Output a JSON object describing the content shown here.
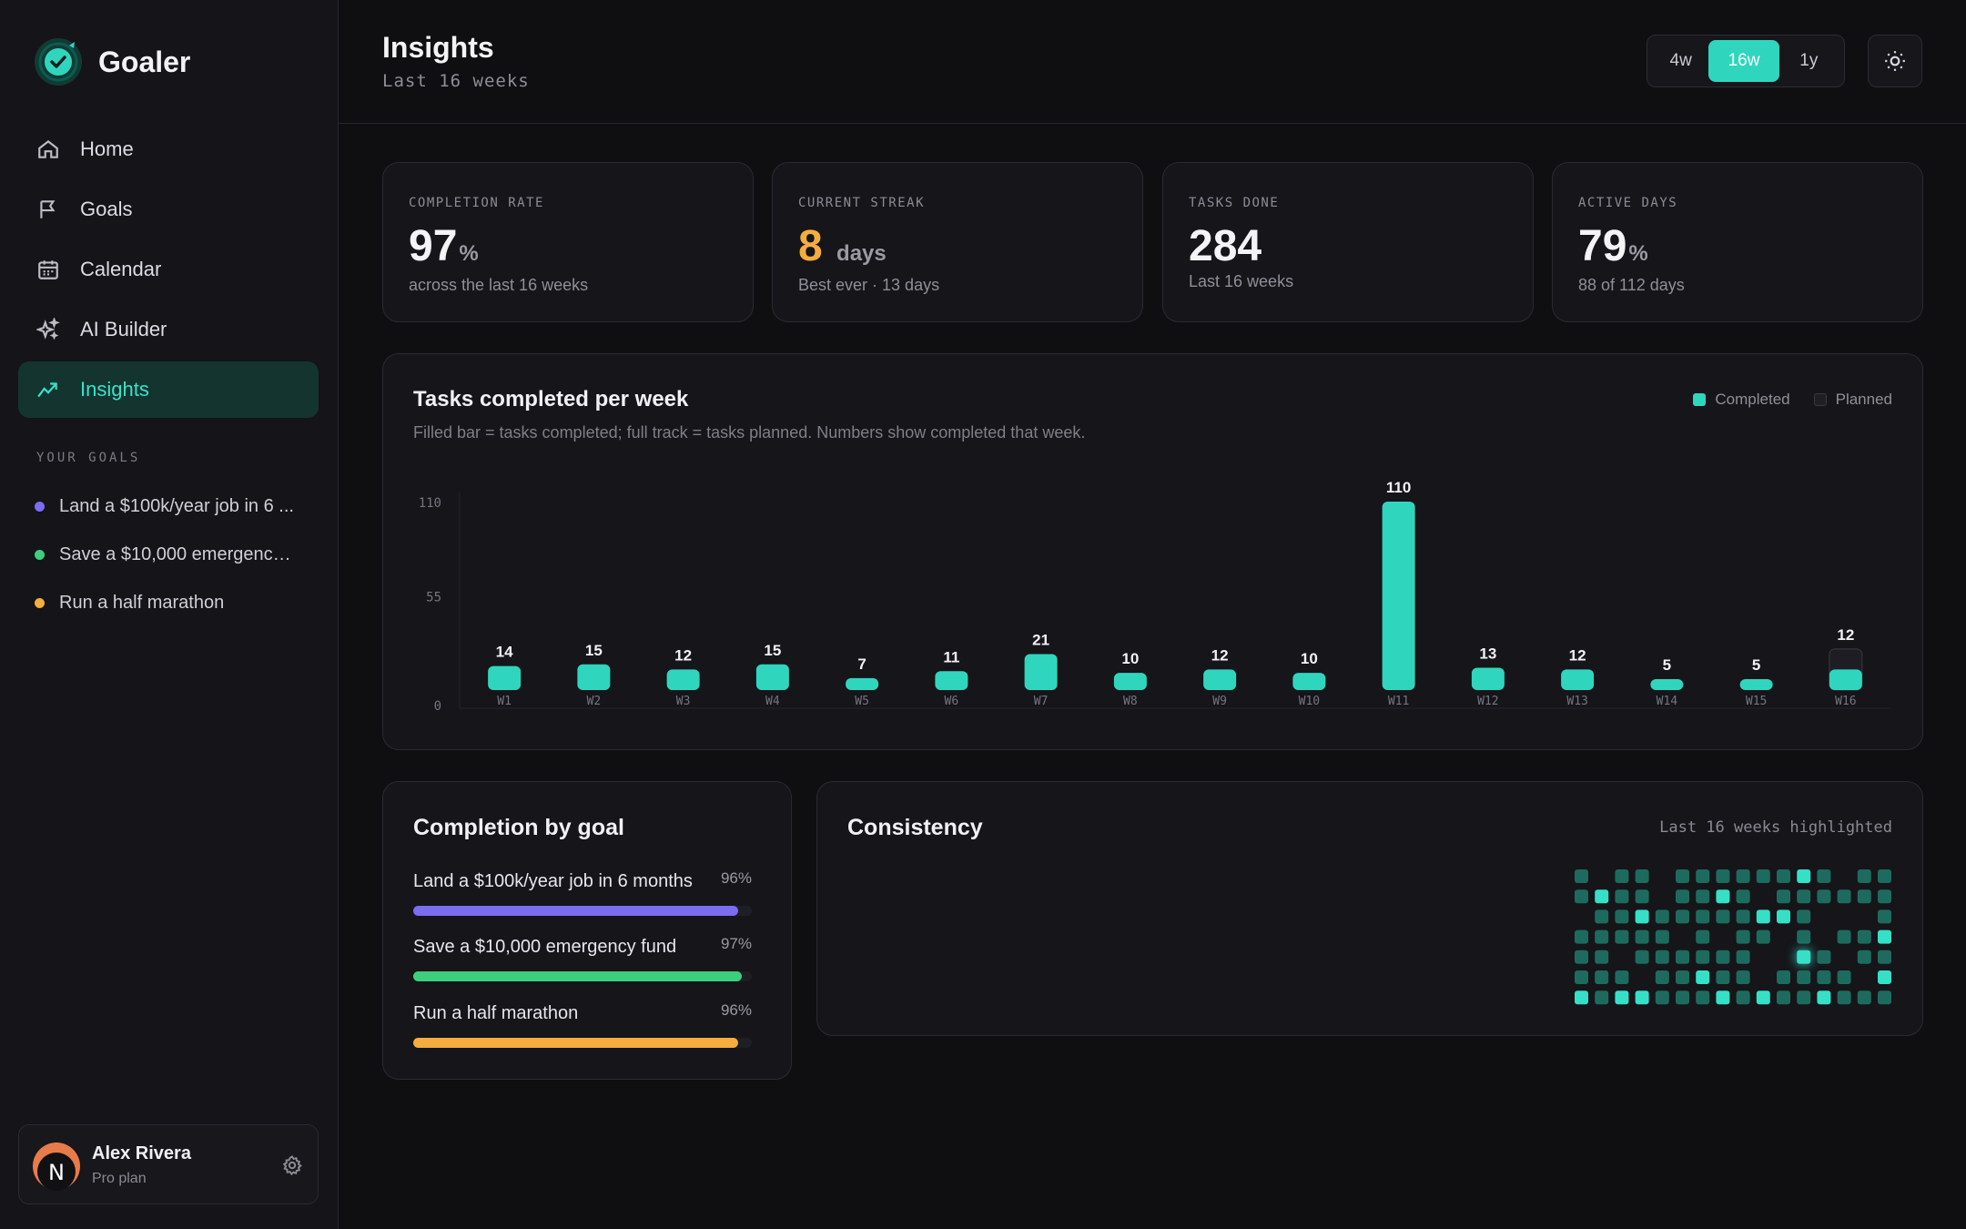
{
  "app": {
    "name": "Goaler"
  },
  "nav": {
    "items": [
      {
        "label": "Home",
        "icon": "home-icon"
      },
      {
        "label": "Goals",
        "icon": "flag-icon"
      },
      {
        "label": "Calendar",
        "icon": "calendar-icon"
      },
      {
        "label": "AI Builder",
        "icon": "sparkles-icon"
      },
      {
        "label": "Insights",
        "icon": "trend-icon",
        "active": true
      }
    ]
  },
  "sidebar": {
    "goals_heading": "YOUR GOALS",
    "goals": [
      {
        "label": "Land a $100k/year job in 6 ...",
        "color": "#7c6cf0"
      },
      {
        "label": "Save a $10,000 emergency ...",
        "color": "#3ccf7d"
      },
      {
        "label": "Run a half marathon",
        "color": "#f4ad3e"
      }
    ]
  },
  "user": {
    "name": "Alex Rivera",
    "plan": "Pro plan",
    "initial": "N"
  },
  "header": {
    "title": "Insights",
    "subtitle": "Last 16 weeks",
    "ranges": [
      "4w",
      "16w",
      "1y"
    ],
    "active_range": "16w"
  },
  "stats": [
    {
      "label": "COMPLETION RATE",
      "value": "97",
      "unit": "%",
      "note": "across the last 16 weeks"
    },
    {
      "label": "CURRENT STREAK",
      "value": "8",
      "unit": "days",
      "note": "Best ever · 13 days",
      "accent": "#f4ad3e"
    },
    {
      "label": "TASKS DONE",
      "value": "284",
      "unit": "",
      "note": "Last 16 weeks"
    },
    {
      "label": "ACTIVE DAYS",
      "value": "79",
      "unit": "%",
      "note": "88 of 112 days"
    }
  ],
  "chart": {
    "title": "Tasks completed per week",
    "subtitle": "Filled bar = tasks completed; full track = tasks planned. Numbers show completed that week.",
    "legend": [
      "Completed",
      "Planned"
    ],
    "colors": {
      "completed": "#2fd6bd",
      "planned": "#2a2a31"
    }
  },
  "chart_data": {
    "type": "bar",
    "categories": [
      "W1",
      "W2",
      "W3",
      "W4",
      "W5",
      "W6",
      "W7",
      "W8",
      "W9",
      "W10",
      "W11",
      "W12",
      "W13",
      "W14",
      "W15",
      "W16"
    ],
    "series": [
      {
        "name": "Completed",
        "values": [
          14,
          15,
          12,
          15,
          7,
          11,
          21,
          10,
          12,
          10,
          110,
          13,
          12,
          5,
          5,
          12
        ]
      },
      {
        "name": "Planned",
        "values": [
          14,
          15,
          12,
          15,
          7,
          11,
          21,
          10,
          12,
          10,
          110,
          13,
          12,
          5,
          5,
          24
        ]
      }
    ],
    "yticks": [
      0,
      55,
      110
    ],
    "ylim": [
      0,
      110
    ]
  },
  "goal_completion": {
    "title": "Completion by goal",
    "goals": [
      {
        "label": "Land a $100k/year job in 6 months",
        "pct_label": "96%",
        "pct": 96,
        "color": "#7c6cf0"
      },
      {
        "label": "Save a $10,000 emergency fund",
        "pct_label": "97%",
        "pct": 97,
        "color": "#3ccf7d"
      },
      {
        "label": "Run a half marathon",
        "pct_label": "96%",
        "pct": 96,
        "color": "#f4ad3e"
      }
    ]
  },
  "consistency": {
    "title": "Consistency",
    "note": "Last 16 weeks highlighted",
    "grid": [
      [
        2,
        0,
        2,
        2,
        0,
        2,
        2,
        2,
        2,
        2,
        2,
        3,
        2,
        0,
        2,
        2
      ],
      [
        2,
        3,
        2,
        2,
        0,
        2,
        2,
        3,
        2,
        0,
        2,
        2,
        2,
        2,
        2,
        2
      ],
      [
        0,
        2,
        2,
        3,
        2,
        2,
        2,
        2,
        2,
        3,
        3,
        2,
        0,
        0,
        0,
        2
      ],
      [
        2,
        2,
        2,
        2,
        2,
        0,
        2,
        0,
        2,
        2,
        0,
        2,
        0,
        2,
        2,
        3
      ],
      [
        2,
        2,
        0,
        2,
        2,
        2,
        2,
        2,
        2,
        0,
        0,
        4,
        2,
        0,
        2,
        2
      ],
      [
        2,
        2,
        2,
        0,
        2,
        2,
        3,
        2,
        2,
        0,
        2,
        2,
        2,
        2,
        0,
        3
      ],
      [
        3,
        2,
        3,
        3,
        2,
        2,
        2,
        3,
        2,
        3,
        2,
        2,
        3,
        2,
        2,
        2
      ]
    ]
  }
}
